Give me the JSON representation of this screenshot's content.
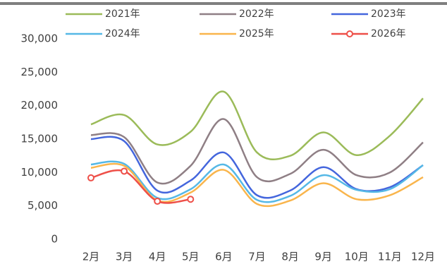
{
  "chart_data": {
    "type": "line",
    "categories": [
      "2月",
      "3月",
      "4月",
      "5月",
      "6月",
      "7月",
      "8月",
      "9月",
      "10月",
      "11月",
      "12月"
    ],
    "series": [
      {
        "name": "2021年",
        "color": "#9bbb59",
        "values": [
          17200,
          18600,
          14200,
          16100,
          22100,
          13000,
          12500,
          16000,
          12600,
          15500,
          21100
        ]
      },
      {
        "name": "2022年",
        "color": "#8f7f85",
        "values": [
          15600,
          15300,
          8500,
          11000,
          18000,
          9300,
          9800,
          13400,
          9600,
          10000,
          14500
        ]
      },
      {
        "name": "2023年",
        "color": "#4466dd",
        "values": [
          15000,
          14700,
          7300,
          8800,
          13000,
          6600,
          7300,
          10800,
          7500,
          7800,
          11100
        ]
      },
      {
        "name": "2024年",
        "color": "#55b8e6",
        "values": [
          11200,
          11300,
          6200,
          7500,
          11200,
          5900,
          6500,
          9600,
          7400,
          7500,
          11100
        ]
      },
      {
        "name": "2025年",
        "color": "#f9b54c",
        "values": [
          10700,
          11000,
          5800,
          7000,
          10400,
          5300,
          5800,
          8400,
          6000,
          6600,
          9300
        ]
      },
      {
        "name": "2026年",
        "color": "#ee5049",
        "markers": true,
        "values": [
          9200,
          10200,
          5700,
          6000,
          null,
          null,
          null,
          null,
          null,
          null,
          null
        ]
      }
    ],
    "ylim": [
      0,
      30000
    ],
    "yticks": [
      0,
      {
        "value": 5000,
        "label": "5,000"
      },
      {
        "value": 10000,
        "label": "10,000"
      },
      {
        "value": 15000,
        "label": "15,000"
      },
      {
        "value": 20000,
        "label": "20,000"
      },
      {
        "value": 25000,
        "label": "25,000"
      },
      {
        "value": 30000,
        "label": "30,000"
      }
    ],
    "grid": false
  }
}
